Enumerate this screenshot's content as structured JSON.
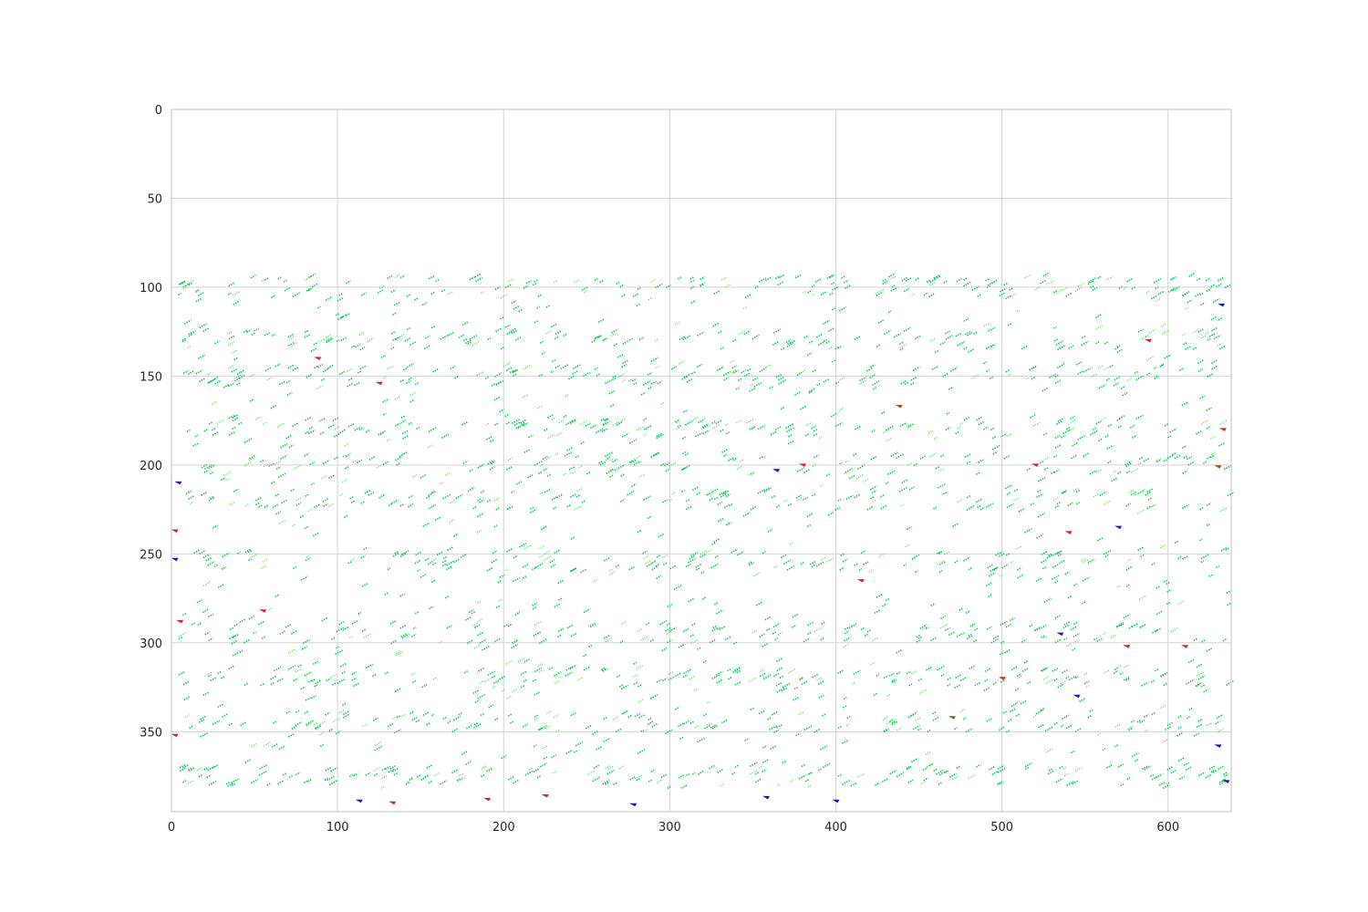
{
  "chart_data": {
    "type": "scatter",
    "title": "",
    "xlabel": "",
    "ylabel": "",
    "xlim": [
      0,
      638
    ],
    "ylim": [
      395,
      0
    ],
    "y_axis_inverted": true,
    "grid": true,
    "legend": "none",
    "x_ticks": [
      "0",
      "100",
      "200",
      "300",
      "400",
      "500",
      "600"
    ],
    "y_ticks": [
      "0",
      "50",
      "100",
      "150",
      "200",
      "250",
      "300",
      "350"
    ],
    "colors": {
      "dominant": "#00c853",
      "light": "#33dd33",
      "red": "#e02020",
      "blue": "#1515d0",
      "brown": "#a05010"
    },
    "point_field": {
      "x_range": [
        4,
        636
      ],
      "y_range": [
        93,
        382
      ],
      "dense_bands_y": [
        100,
        130,
        150,
        180,
        200,
        220,
        255,
        295,
        320,
        345,
        375
      ],
      "description_of_marks": "short diagonal green streak marks, dense horizontal bands"
    },
    "highlight_points": [
      {
        "x": 364,
        "y": 203,
        "color": "blue"
      },
      {
        "x": 630,
        "y": 201,
        "color": "brown"
      },
      {
        "x": 438,
        "y": 167,
        "color": "brown"
      },
      {
        "x": 633,
        "y": 180,
        "color": "red"
      },
      {
        "x": 113,
        "y": 389,
        "color": "blue"
      },
      {
        "x": 133,
        "y": 390,
        "color": "red"
      },
      {
        "x": 190,
        "y": 388,
        "color": "red"
      },
      {
        "x": 225,
        "y": 386,
        "color": "red"
      },
      {
        "x": 278,
        "y": 391,
        "color": "blue"
      },
      {
        "x": 358,
        "y": 387,
        "color": "blue"
      },
      {
        "x": 400,
        "y": 389,
        "color": "blue"
      },
      {
        "x": 4,
        "y": 210,
        "color": "blue"
      },
      {
        "x": 2,
        "y": 237,
        "color": "red"
      },
      {
        "x": 2,
        "y": 253,
        "color": "blue"
      },
      {
        "x": 2,
        "y": 352,
        "color": "red"
      },
      {
        "x": 630,
        "y": 358,
        "color": "blue"
      },
      {
        "x": 635,
        "y": 378,
        "color": "blue"
      },
      {
        "x": 540,
        "y": 238,
        "color": "red"
      },
      {
        "x": 570,
        "y": 235,
        "color": "blue"
      },
      {
        "x": 470,
        "y": 342,
        "color": "brown"
      },
      {
        "x": 500,
        "y": 320,
        "color": "red"
      },
      {
        "x": 575,
        "y": 302,
        "color": "red"
      },
      {
        "x": 535,
        "y": 295,
        "color": "blue"
      },
      {
        "x": 610,
        "y": 302,
        "color": "red"
      },
      {
        "x": 125,
        "y": 154,
        "color": "red"
      },
      {
        "x": 88,
        "y": 140,
        "color": "red"
      },
      {
        "x": 55,
        "y": 282,
        "color": "red"
      },
      {
        "x": 5,
        "y": 288,
        "color": "red"
      },
      {
        "x": 588,
        "y": 130,
        "color": "red"
      },
      {
        "x": 632,
        "y": 110,
        "color": "blue"
      },
      {
        "x": 520,
        "y": 200,
        "color": "red"
      },
      {
        "x": 380,
        "y": 200,
        "color": "red"
      },
      {
        "x": 545,
        "y": 330,
        "color": "blue"
      },
      {
        "x": 415,
        "y": 265,
        "color": "red"
      }
    ]
  }
}
